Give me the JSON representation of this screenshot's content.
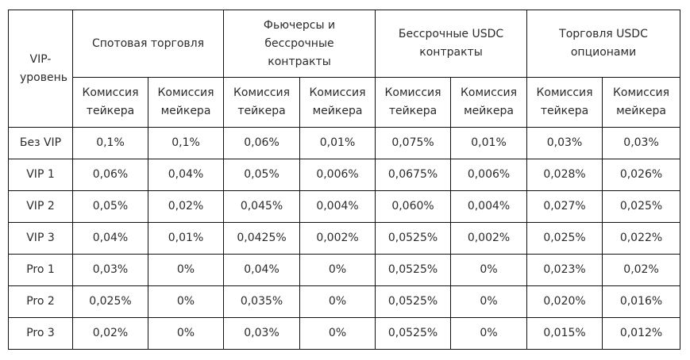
{
  "table": {
    "level_header": "VIP-уровень",
    "groups": [
      {
        "title": "Спотовая торговля",
        "taker": "Комиссия тейкера",
        "maker": "Комиссия мейкера"
      },
      {
        "title": "Фьючерсы и бессрочные контракты",
        "taker": "Комиссия тейкера",
        "maker": "Комиссия мейкера"
      },
      {
        "title": "Бессрочные USDC контракты",
        "taker": "Комиссия тейкера",
        "maker": "Комиссия мейкера"
      },
      {
        "title": "Торговля USDC опционами",
        "taker": "Комиссия тейкера",
        "maker": "Комиссия мейкера"
      }
    ],
    "rows": [
      {
        "level": "Без VIP",
        "values": [
          "0,1%",
          "0,1%",
          "0,06%",
          "0,01%",
          "0,075%",
          "0,01%",
          "0,03%",
          "0,03%"
        ]
      },
      {
        "level": "VIP 1",
        "values": [
          "0,06%",
          "0,04%",
          "0,05%",
          "0,006%",
          "0,0675%",
          "0,006%",
          "0,028%",
          "0,026%"
        ]
      },
      {
        "level": "VIP 2",
        "values": [
          "0,05%",
          "0,02%",
          "0,045%",
          "0,004%",
          "0,060%",
          "0,004%",
          "0,027%",
          "0,025%"
        ]
      },
      {
        "level": "VIP 3",
        "values": [
          "0,04%",
          "0,01%",
          "0,0425%",
          "0,002%",
          "0,0525%",
          "0,002%",
          "0,025%",
          "0,022%"
        ]
      },
      {
        "level": "Pro 1",
        "values": [
          "0,03%",
          "0%",
          "0,04%",
          "0%",
          "0,0525%",
          "0%",
          "0,023%",
          "0,02%"
        ]
      },
      {
        "level": "Pro 2",
        "values": [
          "0,025%",
          "0%",
          "0,035%",
          "0%",
          "0,0525%",
          "0%",
          "0,020%",
          "0,016%"
        ]
      },
      {
        "level": "Pro 3",
        "values": [
          "0,02%",
          "0%",
          "0,03%",
          "0%",
          "0,0525%",
          "0%",
          "0,015%",
          "0,012%"
        ]
      }
    ]
  }
}
